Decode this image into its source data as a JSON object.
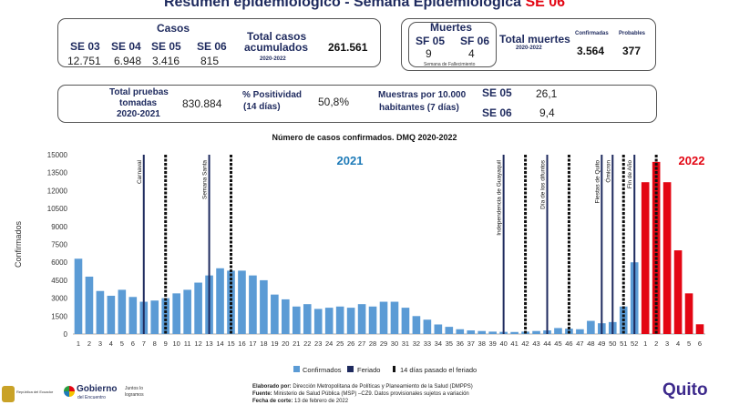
{
  "title": {
    "main": "Resumen epidemiológico - Semana Epidemiológica ",
    "se": "SE 06"
  },
  "casos": {
    "header": "Casos",
    "weeks": [
      {
        "label": "SE 03",
        "value": "12.751"
      },
      {
        "label": "SE 04",
        "value": "6.948"
      },
      {
        "label": "SE 05",
        "value": "3.416"
      },
      {
        "label": "SE 06",
        "value": "815"
      }
    ],
    "total_label_1": "Total casos",
    "total_label_2": "acumulados",
    "total_period": "2020-2022",
    "total_value": "261.561"
  },
  "muertes": {
    "header": "Muertes",
    "weeks": [
      {
        "label": "SF 05",
        "value": "9"
      },
      {
        "label": "SF 06",
        "value": "4"
      }
    ],
    "note": "Semana de Fallecimiento",
    "total_label": "Total muertes",
    "total_period": "2020-2022",
    "confirmadas_label": "Confirmadas",
    "probables_label": "Probables",
    "confirmadas_value": "3.564",
    "probables_value": "377"
  },
  "pruebas": {
    "label_1": "Total pruebas",
    "label_2": "tomadas",
    "period": "2020-2021",
    "value": "830.884",
    "positividad_label_1": "% Positividad",
    "positividad_label_2": "(14 días)",
    "positividad_value": "50,8%",
    "muestras_label_1": "Muestras por 10.000",
    "muestras_label_2": "habitantes (7 días)",
    "se05_label": "SE 05",
    "se05_value": "26,1",
    "se06_label": "SE 06",
    "se06_value": "9,4"
  },
  "chart_data": {
    "type": "bar",
    "title": "Número de casos confirmados. DMQ 2020-2022",
    "ylabel": "Confirmados",
    "ylim": [
      0,
      15000
    ],
    "yticks": [
      0,
      1500,
      3000,
      4500,
      6000,
      7500,
      9000,
      10500,
      12000,
      13500,
      15000
    ],
    "categories": [
      "1",
      "2",
      "3",
      "4",
      "5",
      "6",
      "7",
      "8",
      "9",
      "10",
      "11",
      "12",
      "13",
      "14",
      "15",
      "16",
      "17",
      "18",
      "19",
      "20",
      "21",
      "22",
      "23",
      "24",
      "25",
      "26",
      "27",
      "28",
      "29",
      "30",
      "31",
      "32",
      "33",
      "34",
      "35",
      "36",
      "37",
      "38",
      "39",
      "40",
      "41",
      "42",
      "43",
      "44",
      "45",
      "46",
      "47",
      "48",
      "49",
      "50",
      "51",
      "52",
      "1",
      "2",
      "3",
      "4",
      "5",
      "6"
    ],
    "series": [
      {
        "name": "Confirmados",
        "color": "#5b9bd5",
        "values": [
          6300,
          4800,
          3600,
          3200,
          3700,
          3100,
          2700,
          2800,
          3000,
          3400,
          3700,
          4300,
          4900,
          5500,
          5300,
          5300,
          4900,
          4500,
          3300,
          2900,
          2300,
          2500,
          2100,
          2200,
          2300,
          2200,
          2500,
          2300,
          2700,
          2700,
          2200,
          1500,
          1200,
          800,
          600,
          400,
          300,
          250,
          200,
          180,
          170,
          200,
          250,
          300,
          500,
          450,
          400,
          1100,
          900,
          1000,
          2300,
          6000,
          12700,
          14400,
          12700,
          7000,
          3400,
          815
        ],
        "bar_colors_2022": "#e30613"
      }
    ],
    "year_labels": [
      {
        "text": "2021",
        "color": "#1f7bb8"
      },
      {
        "text": "2022",
        "color": "#e30613"
      }
    ],
    "feriados": [
      {
        "week": 7,
        "label": "Carnaval"
      },
      {
        "week": 13,
        "label": "Semana Santa"
      },
      {
        "week": 40,
        "label": "Independencia de Guayaquil"
      },
      {
        "week": 44,
        "label": "Día de los difuntos"
      },
      {
        "week": 49,
        "label": "Fiestas de Quito"
      },
      {
        "week": 50,
        "label": "Ómicron"
      },
      {
        "week": 52,
        "label": "Fin de Año"
      }
    ],
    "post_feriado_weeks": [
      9,
      15,
      42,
      46,
      51,
      54
    ],
    "legend": [
      "Confirmados",
      "Feriado",
      "14 días pasado el feriado"
    ],
    "legend_position": "bottom"
  },
  "footer": {
    "elaborado_label": "Elaborado por:",
    "elaborado": "Dirección Metropolitana de Políticas y Planeamiento de la Salud (DMPPS)",
    "fuente_label": "Fuente:",
    "fuente": "Ministerio de Salud Pública (MSP) –CZ9. Datos provisionales sujetos a variación",
    "fecha_label": "Fecha de corte:",
    "fecha": "13 de febrero de 2022",
    "logo1": "República del Ecuador",
    "logo2": "Gobierno",
    "logo2b": "del Encuentro",
    "logo2c": "Juntos lo logramos",
    "logo3": "Quito"
  }
}
